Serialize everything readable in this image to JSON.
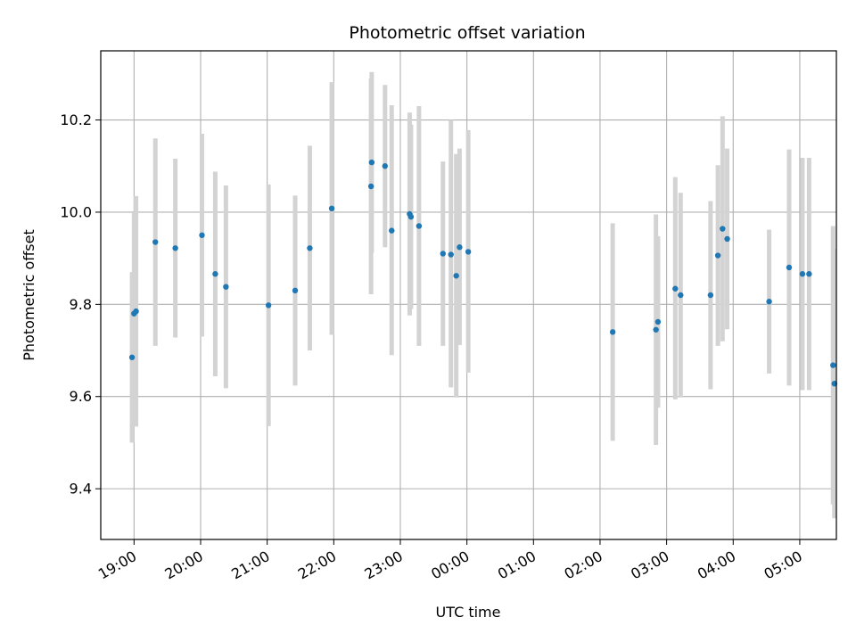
{
  "chart_data": {
    "type": "scatter",
    "title": "Photometric offset variation",
    "xlabel": "UTC time",
    "ylabel": "Photometric offset",
    "x_unit": "hour (UTC, continuing past midnight: 24 = 00:00, 29 = 05:00)",
    "xlim": [
      18.5,
      29.55
    ],
    "ylim": [
      9.29,
      10.35
    ],
    "x_ticks": [
      {
        "value": 19,
        "label": "19:00"
      },
      {
        "value": 20,
        "label": "20:00"
      },
      {
        "value": 21,
        "label": "21:00"
      },
      {
        "value": 22,
        "label": "22:00"
      },
      {
        "value": 23,
        "label": "23:00"
      },
      {
        "value": 24,
        "label": "00:00"
      },
      {
        "value": 25,
        "label": "01:00"
      },
      {
        "value": 26,
        "label": "02:00"
      },
      {
        "value": 27,
        "label": "03:00"
      },
      {
        "value": 28,
        "label": "04:00"
      },
      {
        "value": 29,
        "label": "05:00"
      }
    ],
    "y_ticks": [
      {
        "value": 9.4,
        "label": "9.4"
      },
      {
        "value": 9.6,
        "label": "9.6"
      },
      {
        "value": 9.8,
        "label": "9.8"
      },
      {
        "value": 10.0,
        "label": "10.0"
      },
      {
        "value": 10.2,
        "label": "10.2"
      }
    ],
    "grid": true,
    "colors": {
      "point": "#1f77b4",
      "errorbar": "#d3d3d3",
      "grid": "#b0b0b0"
    },
    "points": [
      {
        "x": 18.97,
        "y": 9.685,
        "lo": 9.5,
        "hi": 9.87
      },
      {
        "x": 19.0,
        "y": 9.78,
        "lo": 9.56,
        "hi": 10.0
      },
      {
        "x": 19.03,
        "y": 9.785,
        "lo": 9.535,
        "hi": 10.035
      },
      {
        "x": 19.32,
        "y": 9.935,
        "lo": 9.71,
        "hi": 10.16
      },
      {
        "x": 19.62,
        "y": 9.922,
        "lo": 9.728,
        "hi": 10.116
      },
      {
        "x": 20.02,
        "y": 9.95,
        "lo": 9.73,
        "hi": 10.17
      },
      {
        "x": 20.22,
        "y": 9.866,
        "lo": 9.644,
        "hi": 10.088
      },
      {
        "x": 20.38,
        "y": 9.838,
        "lo": 9.618,
        "hi": 10.058
      },
      {
        "x": 21.02,
        "y": 9.798,
        "lo": 9.536,
        "hi": 10.06
      },
      {
        "x": 21.42,
        "y": 9.83,
        "lo": 9.624,
        "hi": 10.036
      },
      {
        "x": 21.64,
        "y": 9.922,
        "lo": 9.7,
        "hi": 10.144
      },
      {
        "x": 21.97,
        "y": 10.008,
        "lo": 9.734,
        "hi": 10.282
      },
      {
        "x": 22.56,
        "y": 10.056,
        "lo": 9.822,
        "hi": 10.29
      },
      {
        "x": 22.57,
        "y": 10.108,
        "lo": 9.912,
        "hi": 10.304
      },
      {
        "x": 22.77,
        "y": 10.1,
        "lo": 9.924,
        "hi": 10.276
      },
      {
        "x": 22.87,
        "y": 9.96,
        "lo": 9.69,
        "hi": 10.232
      },
      {
        "x": 23.14,
        "y": 9.996,
        "lo": 9.776,
        "hi": 10.216
      },
      {
        "x": 23.16,
        "y": 9.99,
        "lo": 9.79,
        "hi": 10.19
      },
      {
        "x": 23.28,
        "y": 9.97,
        "lo": 9.71,
        "hi": 10.23
      },
      {
        "x": 23.64,
        "y": 9.91,
        "lo": 9.71,
        "hi": 10.11
      },
      {
        "x": 23.76,
        "y": 9.908,
        "lo": 9.62,
        "hi": 10.2
      },
      {
        "x": 23.84,
        "y": 9.862,
        "lo": 9.598,
        "hi": 10.126
      },
      {
        "x": 23.89,
        "y": 9.924,
        "lo": 9.712,
        "hi": 10.138
      },
      {
        "x": 24.02,
        "y": 9.914,
        "lo": 9.652,
        "hi": 10.178
      },
      {
        "x": 26.19,
        "y": 9.74,
        "lo": 9.504,
        "hi": 9.976
      },
      {
        "x": 26.84,
        "y": 9.745,
        "lo": 9.495,
        "hi": 9.995
      },
      {
        "x": 26.87,
        "y": 9.762,
        "lo": 9.576,
        "hi": 9.948
      },
      {
        "x": 27.13,
        "y": 9.834,
        "lo": 9.594,
        "hi": 10.076
      },
      {
        "x": 27.21,
        "y": 9.82,
        "lo": 9.598,
        "hi": 10.042
      },
      {
        "x": 27.66,
        "y": 9.82,
        "lo": 9.616,
        "hi": 10.024
      },
      {
        "x": 27.77,
        "y": 9.906,
        "lo": 9.71,
        "hi": 10.102
      },
      {
        "x": 27.84,
        "y": 9.964,
        "lo": 9.72,
        "hi": 10.208
      },
      {
        "x": 27.91,
        "y": 9.942,
        "lo": 9.746,
        "hi": 10.138
      },
      {
        "x": 28.54,
        "y": 9.806,
        "lo": 9.65,
        "hi": 9.962
      },
      {
        "x": 28.84,
        "y": 9.88,
        "lo": 9.624,
        "hi": 10.136
      },
      {
        "x": 29.04,
        "y": 9.866,
        "lo": 9.614,
        "hi": 10.118
      },
      {
        "x": 29.14,
        "y": 9.866,
        "lo": 9.614,
        "hi": 10.118
      },
      {
        "x": 29.5,
        "y": 9.668,
        "lo": 9.366,
        "hi": 9.97
      },
      {
        "x": 29.52,
        "y": 9.628,
        "lo": 9.336,
        "hi": 9.92
      }
    ]
  }
}
